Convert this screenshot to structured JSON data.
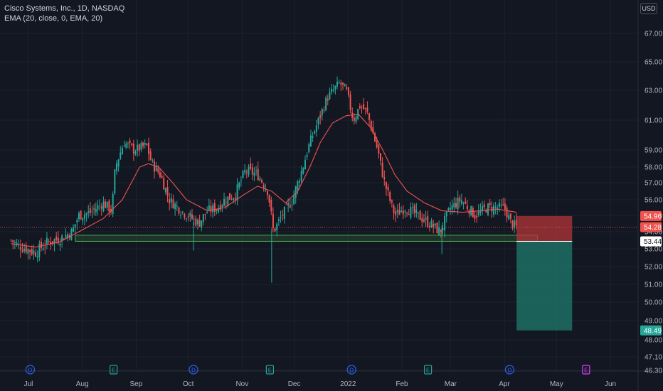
{
  "legend": {
    "symbol_line": "Cisco Systems, Inc., 1D, NASDAQ",
    "indicator_line": "EMA (20, close, 0, EMA, 20)"
  },
  "currency": "USD",
  "colors": {
    "background": "#131722",
    "up": "#26a69a",
    "down": "#ef5350",
    "ema": "#ef5350",
    "support_zone": "#4caf50",
    "stop_zone": "#b2353a",
    "target_zone": "#1f6f63"
  },
  "chart_data": {
    "type": "candlestick",
    "symbol": "Cisco Systems, Inc.",
    "interval": "1D",
    "exchange": "NASDAQ",
    "y_ticks": [
      "46.30",
      "47.10",
      "48.00",
      "49.00",
      "50.00",
      "51.00",
      "52.00",
      "53.00",
      "54.00",
      "55.00",
      "56.00",
      "57.00",
      "58.00",
      "59.00",
      "61.00",
      "63.00",
      "65.00",
      "67.00"
    ],
    "x_ticks": [
      {
        "label": "Jul",
        "date": "2021-07-01"
      },
      {
        "label": "Aug",
        "date": "2021-08-01"
      },
      {
        "label": "Sep",
        "date": "2021-09-01"
      },
      {
        "label": "Oct",
        "date": "2021-10-01"
      },
      {
        "label": "Nov",
        "date": "2021-11-01"
      },
      {
        "label": "Dec",
        "date": "2021-12-01"
      },
      {
        "label": "2022",
        "date": "2022-01-01"
      },
      {
        "label": "Feb",
        "date": "2022-02-01"
      },
      {
        "label": "Mar",
        "date": "2022-03-01"
      },
      {
        "label": "Apr",
        "date": "2022-04-01"
      },
      {
        "label": "May",
        "date": "2022-05-01"
      },
      {
        "label": "Jun",
        "date": "2022-06-01"
      }
    ],
    "close_path": [
      [
        "2021-06-21",
        53.5
      ],
      [
        "2021-06-25",
        53.2
      ],
      [
        "2021-06-30",
        53.0
      ],
      [
        "2021-07-05",
        52.8
      ],
      [
        "2021-07-12",
        53.4
      ],
      [
        "2021-07-19",
        53.6
      ],
      [
        "2021-07-26",
        54.0
      ],
      [
        "2021-07-30",
        55.0
      ],
      [
        "2021-08-06",
        55.2
      ],
      [
        "2021-08-13",
        55.8
      ],
      [
        "2021-08-18",
        55.3
      ],
      [
        "2021-08-20",
        58.0
      ],
      [
        "2021-08-25",
        59.5
      ],
      [
        "2021-08-31",
        59.0
      ],
      [
        "2021-09-07",
        59.3
      ],
      [
        "2021-09-10",
        58.2
      ],
      [
        "2021-09-15",
        57.5
      ],
      [
        "2021-09-20",
        56.0
      ],
      [
        "2021-09-28",
        55.2
      ],
      [
        "2021-10-01",
        55.0
      ],
      [
        "2021-10-07",
        54.5
      ],
      [
        "2021-10-12",
        55.3
      ],
      [
        "2021-10-18",
        55.5
      ],
      [
        "2021-10-22",
        56.0
      ],
      [
        "2021-10-28",
        56.3
      ],
      [
        "2021-11-03",
        57.8
      ],
      [
        "2021-11-10",
        57.5
      ],
      [
        "2021-11-16",
        56.5
      ],
      [
        "2021-11-19",
        54.0
      ],
      [
        "2021-11-24",
        55.0
      ],
      [
        "2021-11-30",
        56.0
      ],
      [
        "2021-12-06",
        58.0
      ],
      [
        "2021-12-10",
        59.5
      ],
      [
        "2021-12-15",
        61.0
      ],
      [
        "2021-12-20",
        62.5
      ],
      [
        "2021-12-27",
        63.5
      ],
      [
        "2021-12-31",
        63.0
      ],
      [
        "2022-01-04",
        61.0
      ],
      [
        "2022-01-08",
        62.0
      ],
      [
        "2022-01-12",
        61.5
      ],
      [
        "2022-01-18",
        59.0
      ],
      [
        "2022-01-22",
        57.0
      ],
      [
        "2022-01-28",
        55.0
      ],
      [
        "2022-02-03",
        55.5
      ],
      [
        "2022-02-10",
        55.0
      ],
      [
        "2022-02-17",
        54.5
      ],
      [
        "2022-02-23",
        54.0
      ],
      [
        "2022-03-01",
        55.5
      ],
      [
        "2022-03-07",
        56.0
      ],
      [
        "2022-03-15",
        55.0
      ],
      [
        "2022-03-22",
        55.5
      ],
      [
        "2022-03-29",
        55.5
      ],
      [
        "2022-04-01",
        55.5
      ],
      [
        "2022-04-05",
        54.5
      ],
      [
        "2022-04-08",
        54.28
      ]
    ],
    "ema_20_path": [
      [
        "2021-06-21",
        53.3
      ],
      [
        "2021-07-05",
        53.1
      ],
      [
        "2021-07-19",
        53.4
      ],
      [
        "2021-07-30",
        54.0
      ],
      [
        "2021-08-13",
        54.8
      ],
      [
        "2021-08-24",
        56.0
      ],
      [
        "2021-09-03",
        58.0
      ],
      [
        "2021-09-08",
        58.2
      ],
      [
        "2021-09-14",
        58.0
      ],
      [
        "2021-09-22",
        57.0
      ],
      [
        "2021-09-30",
        56.0
      ],
      [
        "2021-10-12",
        55.3
      ],
      [
        "2021-10-22",
        55.5
      ],
      [
        "2021-11-02",
        56.3
      ],
      [
        "2021-11-10",
        56.8
      ],
      [
        "2021-11-18",
        56.5
      ],
      [
        "2021-11-26",
        55.8
      ],
      [
        "2021-12-03",
        56.5
      ],
      [
        "2021-12-10",
        58.0
      ],
      [
        "2021-12-16",
        59.5
      ],
      [
        "2021-12-23",
        60.8
      ],
      [
        "2021-12-31",
        61.3
      ],
      [
        "2022-01-07",
        61.4
      ],
      [
        "2022-01-14",
        60.5
      ],
      [
        "2022-01-21",
        59.0
      ],
      [
        "2022-01-28",
        57.5
      ],
      [
        "2022-02-04",
        56.5
      ],
      [
        "2022-02-14",
        55.8
      ],
      [
        "2022-02-24",
        55.3
      ],
      [
        "2022-03-08",
        55.2
      ],
      [
        "2022-03-18",
        55.3
      ],
      [
        "2022-03-28",
        55.4
      ],
      [
        "2022-04-08",
        55.2
      ]
    ],
    "price_labels": [
      {
        "value": "54.96",
        "kind": "stop"
      },
      {
        "value": "54.28",
        "kind": "last"
      },
      {
        "value": "53.44",
        "kind": "entry"
      },
      {
        "value": "48.49",
        "kind": "target"
      }
    ],
    "support_zone": {
      "low": 53.44,
      "high": 53.8,
      "start": "2021-07-28",
      "end": "2022-04-20"
    },
    "position": {
      "type": "short",
      "entry": 53.44,
      "stop": 54.96,
      "target": 48.49,
      "start": "2022-04-08",
      "end": "2022-05-10"
    },
    "events": [
      {
        "date": "2021-07-02",
        "kind": "D"
      },
      {
        "date": "2021-08-19",
        "kind": "E"
      },
      {
        "date": "2021-10-04",
        "kind": "D"
      },
      {
        "date": "2021-11-17",
        "kind": "E"
      },
      {
        "date": "2022-01-03",
        "kind": "D"
      },
      {
        "date": "2022-02-16",
        "kind": "E"
      },
      {
        "date": "2022-04-04",
        "kind": "D"
      },
      {
        "date": "2022-05-18",
        "kind": "E"
      }
    ]
  }
}
